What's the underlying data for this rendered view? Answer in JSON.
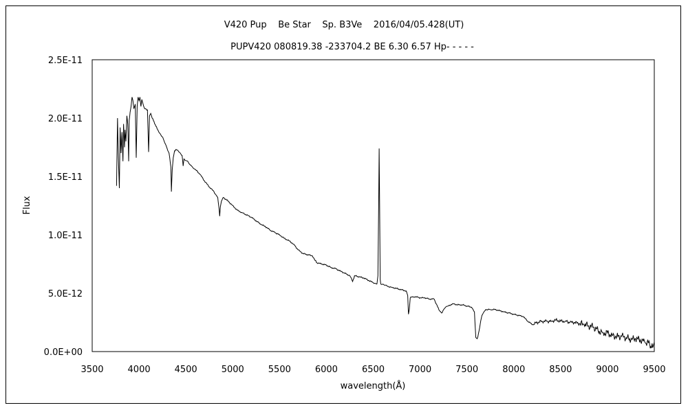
{
  "chart_data": {
    "type": "line",
    "title": "V420 Pup    Be Star    Sp. B3Ve    2016/04/05.428(UT)",
    "subtitle": "PUPV420 080819.38 -233704.2 BE 6.30 6.57 Hp- - - - -",
    "xlabel": "wavelength(Å)",
    "ylabel": "Flux",
    "xlim": [
      3500,
      9500
    ],
    "ylim": [
      0,
      2.5e-11
    ],
    "x_ticks": [
      3500,
      4000,
      4500,
      5000,
      5500,
      6000,
      6500,
      7000,
      7500,
      8000,
      8500,
      9000,
      9500
    ],
    "y_ticks": [
      0,
      5e-12,
      1e-11,
      1.5e-11,
      2e-11,
      2.5e-11
    ],
    "y_tick_labels": [
      "0.0E+00",
      "5.0E-12",
      "1.0E-11",
      "1.5E-11",
      "2.0E-11",
      "2.5E-11"
    ],
    "grid": false,
    "line_color": "#000000",
    "series": [
      {
        "values_e12": [
          [
            3760,
            14.2
          ],
          [
            3770,
            20.0
          ],
          [
            3780,
            16.5
          ],
          [
            3790,
            14.0
          ],
          [
            3798,
            19.2
          ],
          [
            3808,
            17.0
          ],
          [
            3818,
            18.8
          ],
          [
            3828,
            16.3
          ],
          [
            3835,
            19.5
          ],
          [
            3845,
            17.5
          ],
          [
            3850,
            19.0
          ],
          [
            3860,
            18.0
          ],
          [
            3870,
            20.2
          ],
          [
            3880,
            19.5
          ],
          [
            3889,
            16.3
          ],
          [
            3895,
            19.8
          ],
          [
            3905,
            20.5
          ],
          [
            3915,
            21.0
          ],
          [
            3925,
            21.8
          ],
          [
            3935,
            21.5
          ],
          [
            3945,
            20.8
          ],
          [
            3960,
            21.2
          ],
          [
            3970,
            16.6
          ],
          [
            3980,
            21.0
          ],
          [
            3990,
            21.8
          ],
          [
            4000,
            21.5
          ],
          [
            4010,
            21.8
          ],
          [
            4020,
            21.0
          ],
          [
            4030,
            21.6
          ],
          [
            4040,
            21.3
          ],
          [
            4050,
            21.0
          ],
          [
            4060,
            20.8
          ],
          [
            4070,
            20.8
          ],
          [
            4090,
            20.7
          ],
          [
            4102,
            17.1
          ],
          [
            4112,
            20.2
          ],
          [
            4125,
            20.4
          ],
          [
            4140,
            20.0
          ],
          [
            4160,
            19.7
          ],
          [
            4180,
            19.3
          ],
          [
            4200,
            19.0
          ],
          [
            4230,
            18.6
          ],
          [
            4260,
            18.2
          ],
          [
            4280,
            17.8
          ],
          [
            4300,
            17.4
          ],
          [
            4320,
            17.0
          ],
          [
            4340,
            15.8
          ],
          [
            4345,
            13.7
          ],
          [
            4355,
            15.6
          ],
          [
            4365,
            16.6
          ],
          [
            4380,
            17.2
          ],
          [
            4400,
            17.3
          ],
          [
            4430,
            17.1
          ],
          [
            4460,
            16.8
          ],
          [
            4471,
            15.9
          ],
          [
            4480,
            16.5
          ],
          [
            4520,
            16.3
          ],
          [
            4560,
            15.9
          ],
          [
            4600,
            15.6
          ],
          [
            4650,
            15.2
          ],
          [
            4700,
            14.6
          ],
          [
            4750,
            14.1
          ],
          [
            4800,
            13.7
          ],
          [
            4840,
            13.2
          ],
          [
            4855,
            12.2
          ],
          [
            4861,
            11.6
          ],
          [
            4868,
            12.4
          ],
          [
            4880,
            12.9
          ],
          [
            4900,
            13.2
          ],
          [
            4950,
            12.9
          ],
          [
            5000,
            12.5
          ],
          [
            5050,
            12.1
          ],
          [
            5100,
            11.9
          ],
          [
            5150,
            11.7
          ],
          [
            5200,
            11.5
          ],
          [
            5250,
            11.2
          ],
          [
            5300,
            10.9
          ],
          [
            5350,
            10.7
          ],
          [
            5400,
            10.4
          ],
          [
            5450,
            10.2
          ],
          [
            5500,
            10.0
          ],
          [
            5550,
            9.7
          ],
          [
            5600,
            9.5
          ],
          [
            5650,
            9.2
          ],
          [
            5700,
            8.7
          ],
          [
            5750,
            8.4
          ],
          [
            5800,
            8.3
          ],
          [
            5850,
            8.2
          ],
          [
            5880,
            7.8
          ],
          [
            5900,
            7.6
          ],
          [
            5950,
            7.5
          ],
          [
            6000,
            7.4
          ],
          [
            6050,
            7.2
          ],
          [
            6100,
            7.1
          ],
          [
            6150,
            6.9
          ],
          [
            6200,
            6.7
          ],
          [
            6250,
            6.5
          ],
          [
            6280,
            6.0
          ],
          [
            6300,
            6.5
          ],
          [
            6350,
            6.4
          ],
          [
            6400,
            6.3
          ],
          [
            6450,
            6.1
          ],
          [
            6500,
            5.9
          ],
          [
            6540,
            5.8
          ],
          [
            6550,
            6.5
          ],
          [
            6558,
            12.5
          ],
          [
            6563,
            17.4
          ],
          [
            6568,
            12.6
          ],
          [
            6574,
            6.2
          ],
          [
            6580,
            5.8
          ],
          [
            6650,
            5.6
          ],
          [
            6700,
            5.5
          ],
          [
            6750,
            5.4
          ],
          [
            6800,
            5.3
          ],
          [
            6850,
            5.2
          ],
          [
            6868,
            4.8
          ],
          [
            6876,
            3.2
          ],
          [
            6885,
            3.6
          ],
          [
            6895,
            4.6
          ],
          [
            6920,
            4.7
          ],
          [
            6950,
            4.7
          ],
          [
            7000,
            4.6
          ],
          [
            7050,
            4.6
          ],
          [
            7100,
            4.5
          ],
          [
            7150,
            4.5
          ],
          [
            7200,
            3.6
          ],
          [
            7230,
            3.3
          ],
          [
            7260,
            3.7
          ],
          [
            7300,
            3.9
          ],
          [
            7350,
            4.1
          ],
          [
            7400,
            4.0
          ],
          [
            7450,
            4.0
          ],
          [
            7500,
            3.9
          ],
          [
            7550,
            3.8
          ],
          [
            7580,
            3.4
          ],
          [
            7595,
            1.2
          ],
          [
            7610,
            1.1
          ],
          [
            7630,
            1.8
          ],
          [
            7660,
            3.1
          ],
          [
            7700,
            3.6
          ],
          [
            7750,
            3.6
          ],
          [
            7800,
            3.6
          ],
          [
            7850,
            3.5
          ],
          [
            7900,
            3.4
          ],
          [
            7950,
            3.3
          ],
          [
            8000,
            3.2
          ],
          [
            8050,
            3.1
          ],
          [
            8100,
            3.0
          ],
          [
            8150,
            2.6
          ],
          [
            8200,
            2.3
          ],
          [
            8250,
            2.5
          ],
          [
            8300,
            2.6
          ],
          [
            8350,
            2.6
          ],
          [
            8400,
            2.6
          ],
          [
            8450,
            2.7
          ],
          [
            8500,
            2.6
          ],
          [
            8550,
            2.6
          ],
          [
            8600,
            2.5
          ],
          [
            8650,
            2.5
          ],
          [
            8700,
            2.4
          ],
          [
            8750,
            2.3
          ],
          [
            8800,
            2.2
          ],
          [
            8850,
            2.1
          ],
          [
            8900,
            1.8
          ],
          [
            8950,
            1.6
          ],
          [
            9000,
            1.6
          ],
          [
            9050,
            1.4
          ],
          [
            9100,
            1.3
          ],
          [
            9150,
            1.3
          ],
          [
            9200,
            1.2
          ],
          [
            9250,
            1.0
          ],
          [
            9300,
            1.1
          ],
          [
            9350,
            1.0
          ],
          [
            9400,
            0.8
          ],
          [
            9450,
            0.7
          ],
          [
            9470,
            0.3
          ],
          [
            9490,
            0.5
          ],
          [
            9500,
            0.8
          ]
        ]
      }
    ]
  }
}
